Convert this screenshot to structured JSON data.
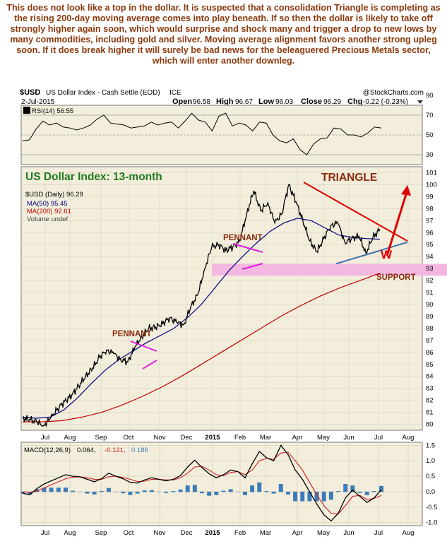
{
  "headline": "This does not look like a top in the dollar. It is suspected that a consolidation Triangle is completing as the rising 200-day moving average comes into play beneath. If so then the dollar is likely to take off strongly higher again soon, which would surprise and shock many and trigger a drop to new lows by many commodities, including gold and silver. Moving average alignment favors another strong upleg soon. If it does break higher it will surely be bad news for the beleaguered Precious Metals sector, which will enter another downleg.",
  "header": {
    "symbol": "$USD",
    "name": "US Dollar Index - Cash Settle (EOD)",
    "exchange": "ICE",
    "brand": "@StockCharts.com",
    "date": "2-Jul-2015",
    "open_label": "Open",
    "open": "96.58",
    "high_label": "High",
    "high": "96.67",
    "low_label": "Low",
    "low": "96.03",
    "close_label": "Close",
    "close": "96.29",
    "chg_label": "Chg",
    "chg": "-0.22 (-0.23%)"
  },
  "rsi_legend": "RSI(14) 56.55",
  "main_legend": {
    "price": "$USD (Daily) 96.29",
    "ma50": "MA(50) 95.45",
    "ma200": "MA(200) 92.61",
    "volume": "Volume undef"
  },
  "macd_legend": {
    "label": "MACD(12,26,9)",
    "macd": "0.064,",
    "signal": "-0.121,",
    "hist": "0.186"
  },
  "annotations": {
    "title": "US Dollar Index: 13-month",
    "triangle": "TRIANGLE",
    "pennant1": "PENNANT",
    "pennant2": "PENNANT",
    "support": "SUPPORT",
    "w": "W"
  },
  "colors": {
    "panel_bg": "#F3EEDC",
    "price": "#000000",
    "ma50": "#000080",
    "ma200": "#C00000",
    "title_green": "#1E7A1E",
    "annotation_red": "#8B2A10",
    "triangle_red": "#E00000",
    "pennant_magenta": "#E020E0",
    "support_pink": "#F4B8E0",
    "macd_hist": "#3D7CB8"
  },
  "chart_data": [
    {
      "type": "line",
      "panel": "rsi",
      "series": [
        {
          "name": "RSI(14)",
          "values": [
            44,
            45,
            56,
            64,
            60,
            62,
            58,
            57,
            55,
            57,
            60,
            66,
            70,
            62,
            61,
            60,
            57,
            58,
            59,
            63,
            60,
            62,
            63,
            57,
            64,
            72,
            65,
            63,
            54,
            69,
            72,
            59,
            62,
            60,
            54,
            63,
            62,
            50,
            44,
            42,
            46,
            35,
            30,
            41,
            46,
            47,
            57,
            56,
            50,
            50,
            48,
            52,
            58,
            57
          ]
        }
      ],
      "ylim": [
        20,
        80
      ],
      "yticks": [
        30,
        50,
        70,
        90
      ]
    },
    {
      "type": "line",
      "panel": "price",
      "x_tick_labels": [
        "Jul",
        "Aug",
        "Sep",
        "Oct",
        "Nov",
        "Dec",
        "2015",
        "Feb",
        "Mar",
        "Apr",
        "May",
        "Jun",
        "Jul",
        "Aug"
      ],
      "ylim": [
        79.5,
        101.5
      ],
      "yticks": [
        80,
        81,
        82,
        83,
        84,
        85,
        86,
        87,
        88,
        89,
        90,
        91,
        92,
        93,
        94,
        95,
        96,
        97,
        98,
        99,
        100,
        101
      ],
      "series": [
        {
          "name": "$USD (Daily)",
          "values": [
            80.5,
            80.4,
            80.2,
            79.9,
            80.5,
            81.3,
            81.9,
            82.4,
            83.2,
            84.0,
            84.7,
            85.6,
            86.2,
            85.9,
            85.4,
            85.2,
            86.4,
            87.3,
            88.0,
            88.1,
            88.4,
            88.9,
            88.5,
            88.3,
            89.8,
            90.8,
            93.0,
            94.8,
            95.0,
            94.5,
            94.8,
            95.3,
            97.6,
            99.5,
            97.8,
            98.5,
            96.8,
            97.6,
            100.0,
            98.6,
            97.0,
            95.3,
            94.4,
            95.5,
            96.6,
            96.8,
            95.2,
            95.5,
            95.7,
            94.3,
            95.6,
            96.29
          ]
        },
        {
          "name": "MA(50)",
          "values": [
            80.6,
            80.5,
            80.6,
            81.2,
            82.2,
            83.4,
            84.5,
            85.4,
            86.1,
            86.8,
            87.4,
            88.0,
            88.9,
            90.0,
            91.4,
            92.8,
            94.0,
            95.1,
            96.1,
            96.8,
            97.2,
            97.0,
            96.4,
            95.8,
            95.6,
            95.5,
            95.45
          ]
        },
        {
          "name": "MA(200)",
          "values": [
            80.2,
            80.2,
            80.3,
            80.6,
            81.0,
            81.6,
            82.3,
            83.1,
            84.0,
            85.0,
            86.0,
            87.0,
            88.0,
            89.0,
            89.9,
            90.7,
            91.4,
            92.0,
            92.61
          ]
        }
      ],
      "support_band": [
        92.4,
        93.4
      ],
      "triangle": {
        "upper": [
          100.2,
          95.3
        ],
        "lower": [
          93.4,
          95.2
        ]
      }
    },
    {
      "type": "line",
      "panel": "macd",
      "ylim": [
        -1.1,
        1.6
      ],
      "yticks": [
        -1.0,
        -0.5,
        0.0,
        0.5,
        1.0,
        1.5
      ],
      "series": [
        {
          "name": "MACD(12,26,9)",
          "values": [
            -0.05,
            -0.1,
            0.1,
            0.25,
            0.35,
            0.45,
            0.55,
            0.5,
            0.48,
            0.4,
            0.32,
            0.42,
            0.6,
            0.5,
            0.42,
            0.3,
            0.28,
            0.38,
            0.45,
            0.4,
            0.35,
            0.4,
            0.52,
            0.8,
            1.02,
            0.78,
            0.58,
            0.45,
            0.55,
            0.7,
            0.65,
            0.45,
            0.9,
            1.3,
            1.1,
            1.0,
            1.5,
            1.2,
            0.7,
            0.4,
            0.0,
            -0.4,
            -0.75,
            -0.95,
            -0.7,
            -0.2,
            0.05,
            -0.15,
            -0.35,
            -0.2,
            0.064
          ]
        },
        {
          "name": "Signal",
          "values": [
            0.0,
            -0.02,
            0.02,
            0.12,
            0.22,
            0.32,
            0.42,
            0.47,
            0.48,
            0.45,
            0.4,
            0.4,
            0.48,
            0.5,
            0.46,
            0.4,
            0.33,
            0.34,
            0.4,
            0.4,
            0.38,
            0.38,
            0.45,
            0.6,
            0.8,
            0.82,
            0.7,
            0.55,
            0.52,
            0.62,
            0.65,
            0.55,
            0.7,
            1.0,
            1.08,
            1.05,
            1.25,
            1.28,
            1.0,
            0.7,
            0.3,
            -0.1,
            -0.45,
            -0.7,
            -0.72,
            -0.45,
            -0.15,
            -0.12,
            -0.25,
            -0.22,
            -0.121
          ]
        }
      ]
    }
  ]
}
